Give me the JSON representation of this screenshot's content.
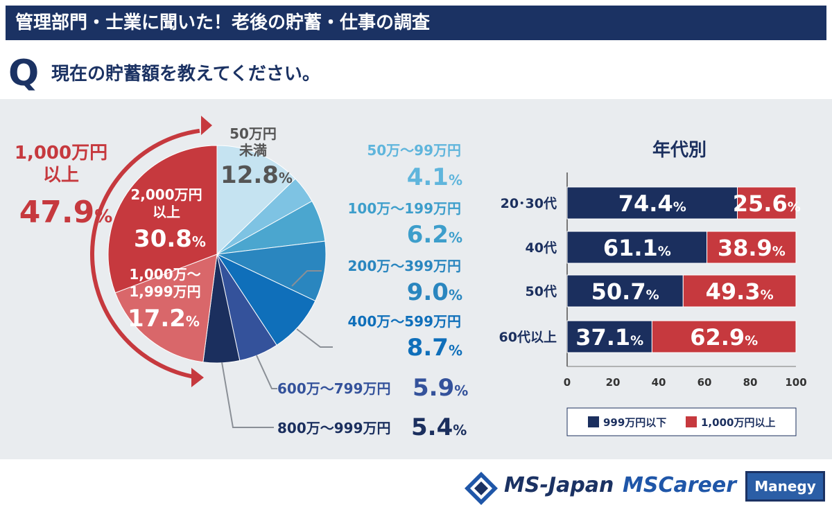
{
  "header": {
    "title": "管理部門・士業に聞いた！老後の貯蓄・仕事の調査"
  },
  "question": {
    "letter": "Q",
    "text": "現在の貯蓄額を教えてください。"
  },
  "chart_data": [
    {
      "type": "pie",
      "title": "現在の貯蓄額",
      "slices": [
        {
          "label": "50万円未満",
          "label_lines": [
            "50万円",
            "未満"
          ],
          "value": 12.8,
          "display": "12.8",
          "color": "#c5e3f1"
        },
        {
          "label": "50万～99万円",
          "value": 4.1,
          "display": "4.1",
          "color": "#7ec3e3"
        },
        {
          "label": "100万～199万円",
          "value": 6.2,
          "display": "6.2",
          "color": "#4ba6cf"
        },
        {
          "label": "200万～399万円",
          "value": 9.0,
          "display": "9.0",
          "color": "#2a86bf"
        },
        {
          "label": "400万～599万円",
          "value": 8.7,
          "display": "8.7",
          "color": "#0f6fba"
        },
        {
          "label": "600万～799万円",
          "value": 5.9,
          "display": "5.9",
          "color": "#34529b"
        },
        {
          "label": "800万～999万円",
          "value": 5.4,
          "display": "5.4",
          "color": "#1b2f5e"
        },
        {
          "label": "1,000万～1,999万円",
          "label_lines": [
            "1,000万～",
            "1,999万円"
          ],
          "value": 17.2,
          "display": "17.2",
          "color": "#d9676a"
        },
        {
          "label": "2,000万円以上",
          "label_lines": [
            "2,000万円",
            "以上"
          ],
          "value": 30.8,
          "display": "30.8",
          "color": "#c6393e"
        }
      ],
      "group_annotation": {
        "label_lines": [
          "1,000万円",
          "以上"
        ],
        "value": "47.9",
        "unit": "%"
      },
      "unit": "%"
    },
    {
      "type": "bar",
      "orientation": "horizontal",
      "stacked": true,
      "title": "年代別",
      "categories": [
        "20･30代",
        "40代",
        "50代",
        "60代以上"
      ],
      "series": [
        {
          "name": "999万円以下",
          "values": [
            74.4,
            61.1,
            50.7,
            37.1
          ],
          "display": [
            "74.4",
            "61.1",
            "50.7",
            "37.1"
          ],
          "color": "#1b2f5e"
        },
        {
          "name": "1,000万円以上",
          "values": [
            25.6,
            38.9,
            49.3,
            62.9
          ],
          "display": [
            "25.6",
            "38.9",
            "49.3",
            "62.9"
          ],
          "color": "#c6393e"
        }
      ],
      "xlim": [
        0,
        100
      ],
      "xticks": [
        "0",
        "20",
        "40",
        "60",
        "80",
        "100"
      ],
      "legend": "bottom",
      "unit": "%"
    }
  ],
  "footer": {
    "ms_japan": "MS-Japan",
    "ms_career": "MSCareer",
    "manegy": "Manegy"
  }
}
